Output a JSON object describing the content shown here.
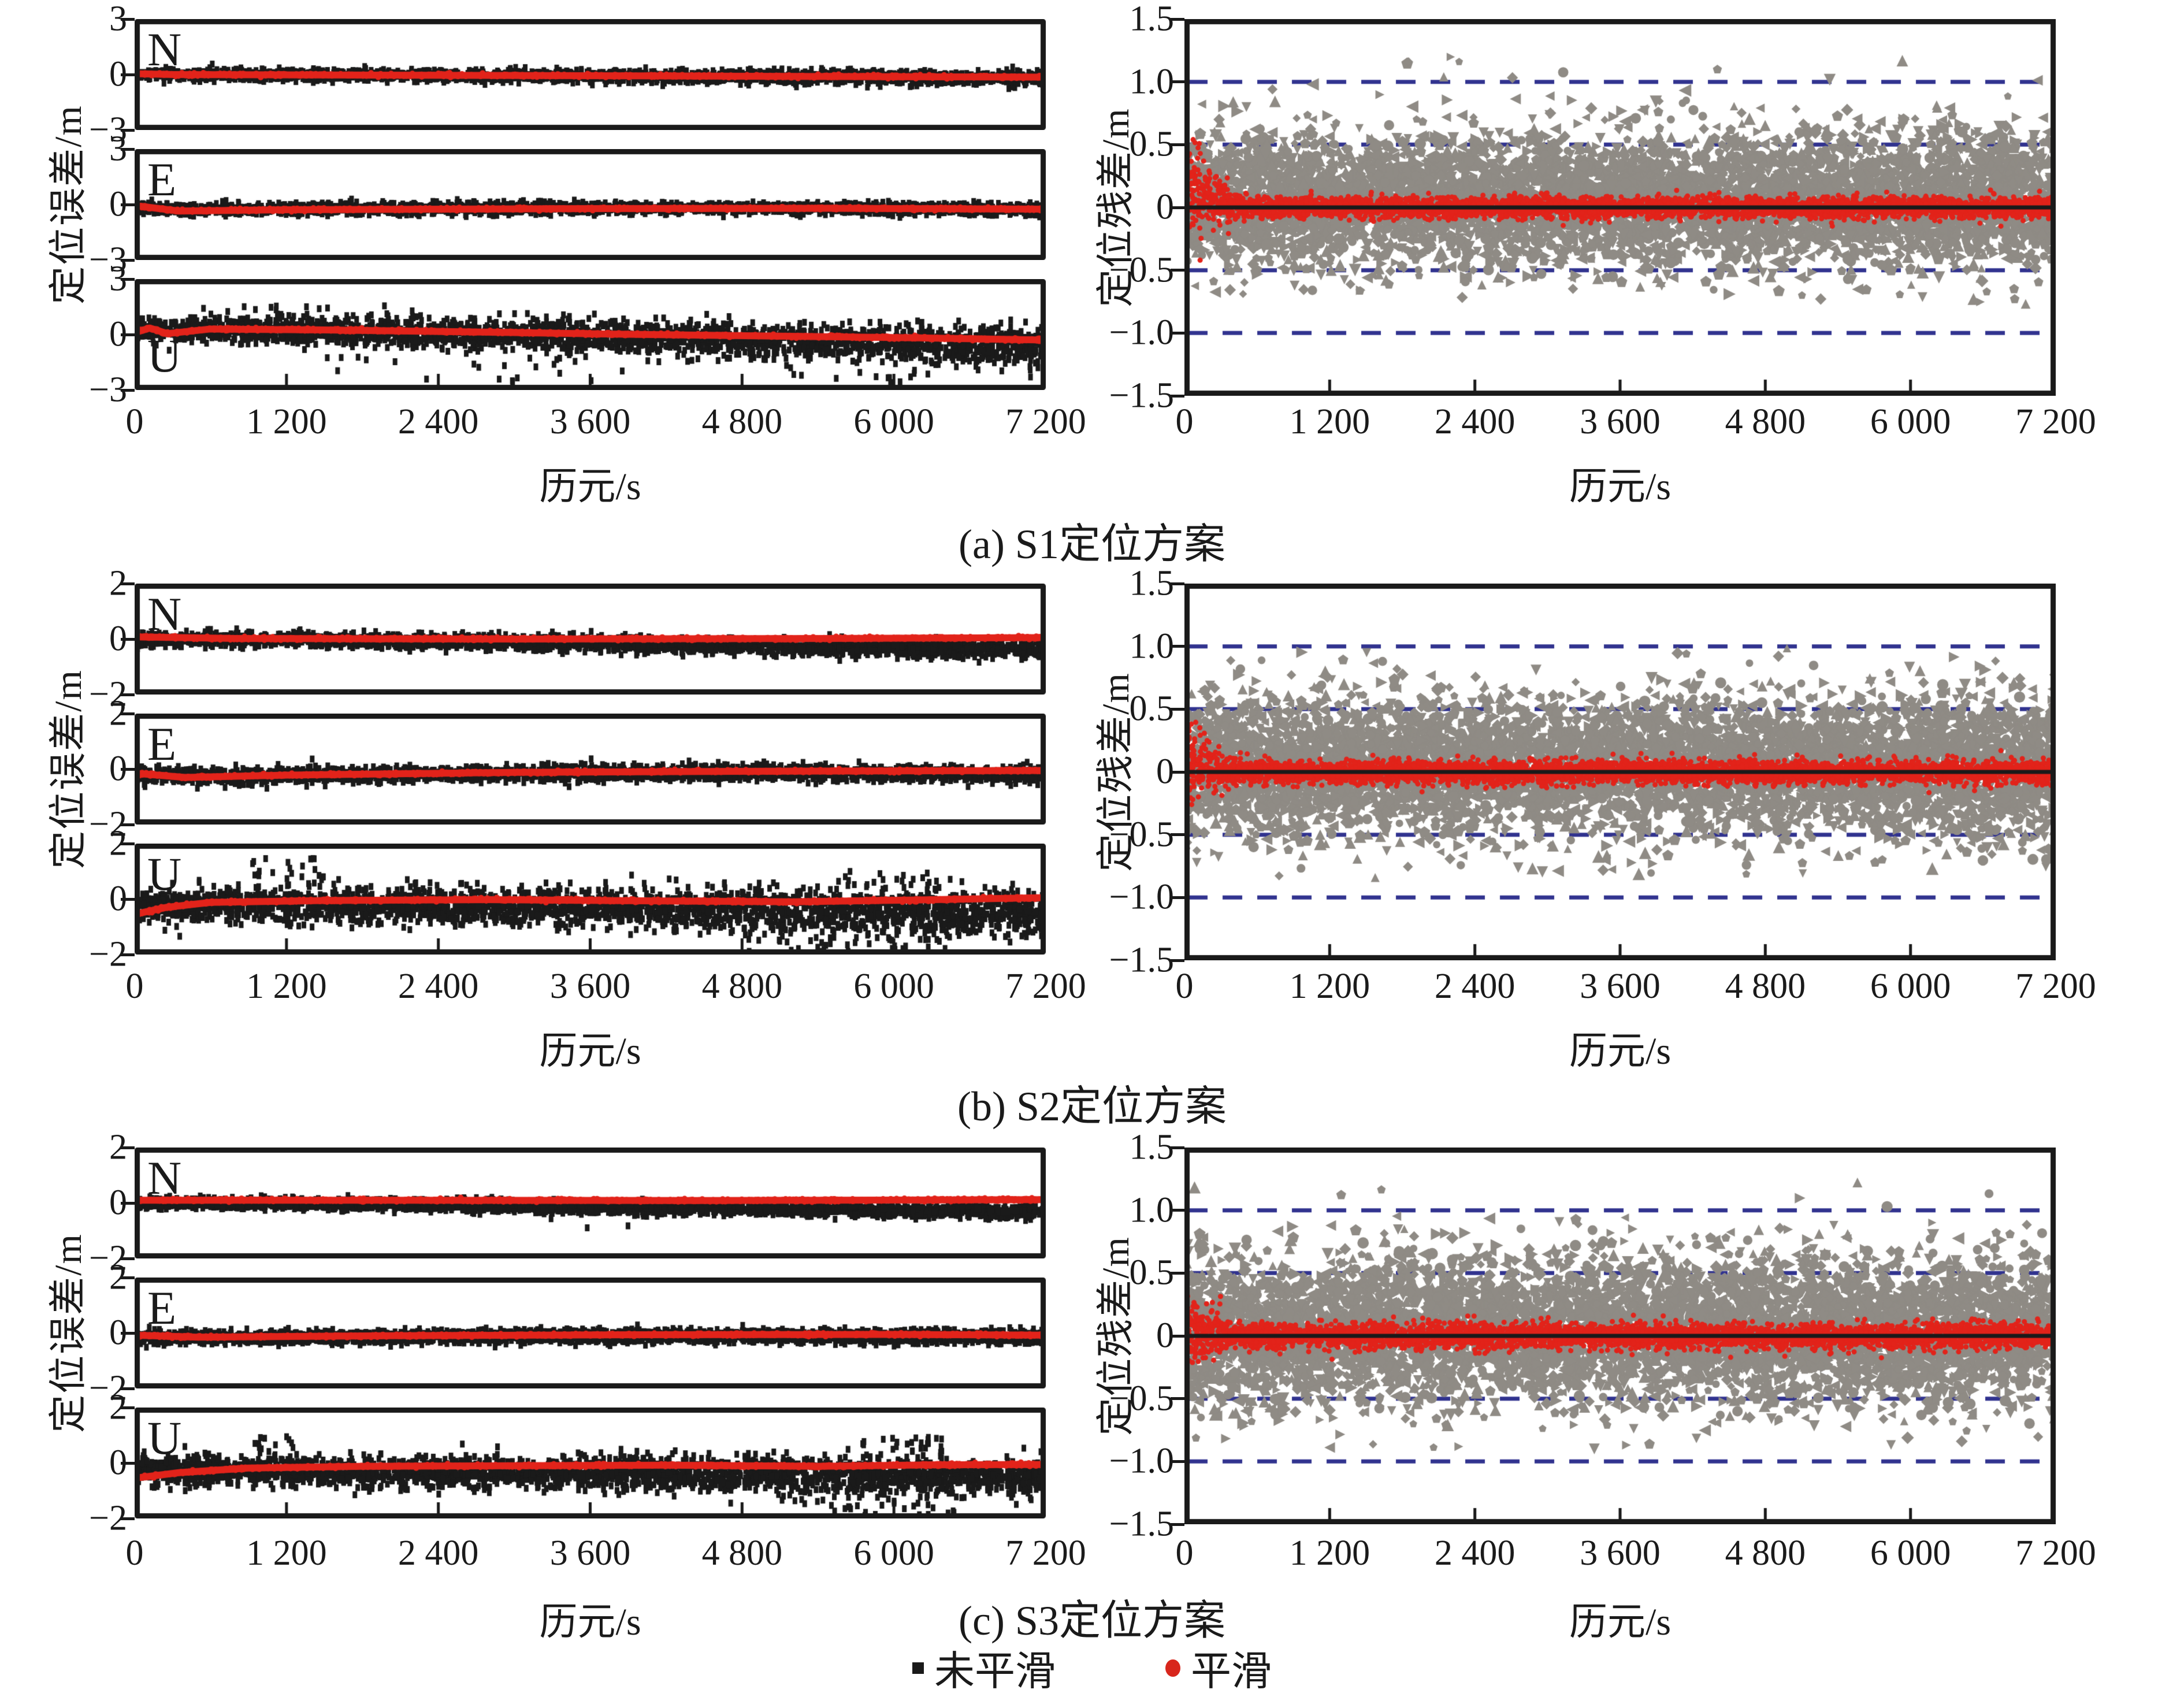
{
  "figure": {
    "xlabel": "历元/s",
    "left_ylabel": "定位误差/m",
    "right_ylabel": "定位残差/m",
    "x_ticks": [
      0,
      1200,
      2400,
      3600,
      4800,
      6000,
      7200
    ],
    "x_tick_labels": [
      "0",
      "1 200",
      "2 400",
      "3 600",
      "4 800",
      "6 000",
      "7 200"
    ],
    "xlim": [
      0,
      7200
    ],
    "legend": [
      {
        "label": "未平滑",
        "marker": "square",
        "color": "#1a1a1a"
      },
      {
        "label": "平滑",
        "marker": "dot",
        "color": "#d8261c"
      }
    ],
    "colors": {
      "black": "#1a1a1a",
      "red": "#e2231a",
      "gray": "#8f8b85",
      "dash_blue": "#31338f",
      "background": "#ffffff"
    }
  },
  "chart_data": [
    {
      "id": "a",
      "caption": "(a) S1定位方案",
      "scheme": "S1",
      "left": {
        "type": "scatter",
        "ylim": 3,
        "y_tick_labels": [
          "3",
          "0",
          "−3"
        ],
        "subplots": [
          {
            "label": "N",
            "label_pos": "top",
            "black": {
              "n": 2200,
              "sigma": [
                0.14,
                0.18
              ],
              "center": [
                [
                  0,
                  0
                ],
                [
                  1500,
                  -0.03
                ],
                [
                  3600,
                  -0.08
                ],
                [
                  5200,
                  -0.13
                ],
                [
                  7200,
                  -0.2
                ]
              ]
            },
            "red": [
              [
                0,
                0.05
              ],
              [
                300,
                0.0
              ],
              [
                1500,
                -0.02
              ],
              [
                3600,
                -0.06
              ],
              [
                5200,
                -0.1
              ],
              [
                7200,
                -0.14
              ]
            ]
          },
          {
            "label": "E",
            "label_pos": "top",
            "black": {
              "n": 2200,
              "sigma": [
                0.15,
                0.15
              ],
              "center": [
                [
                  0,
                  -0.1
                ],
                [
                  350,
                  -0.3
                ],
                [
                  1200,
                  -0.24
                ],
                [
                  3600,
                  -0.18
                ],
                [
                  5500,
                  -0.2
                ],
                [
                  7200,
                  -0.27
                ]
              ]
            },
            "red": [
              [
                0,
                -0.05
              ],
              [
                350,
                -0.35
              ],
              [
                1200,
                -0.28
              ],
              [
                3600,
                -0.22
              ],
              [
                5500,
                -0.2
              ],
              [
                7200,
                -0.25
              ]
            ]
          },
          {
            "label": "U",
            "label_pos": "bottom",
            "black": {
              "n": 2500,
              "sigma": [
                0.34,
                0.5
              ],
              "center": [
                [
                  0,
                  0.3
                ],
                [
                  1500,
                  0.22
                ],
                [
                  3600,
                  -0.08
                ],
                [
                  5400,
                  -0.4
                ],
                [
                  7200,
                  -0.6
                ]
              ],
              "extras": [
                {
                  "n": 60,
                  "x": [
                    1500,
                    7200
                  ],
                  "y": [
                    -2.6,
                    -1.0
                  ]
                },
                {
                  "n": 12,
                  "x": [
                    300,
                    2600
                  ],
                  "y": [
                    1.0,
                    1.6
                  ]
                }
              ]
            },
            "red": [
              [
                0,
                0.1
              ],
              [
                120,
                0.35
              ],
              [
                260,
                0.05
              ],
              [
                600,
                0.3
              ],
              [
                1500,
                0.25
              ],
              [
                2600,
                0.15
              ],
              [
                3800,
                0.02
              ],
              [
                5000,
                -0.08
              ],
              [
                6200,
                -0.18
              ],
              [
                7200,
                -0.3
              ]
            ]
          }
        ]
      },
      "right": {
        "type": "scatter",
        "ylim": 1.5,
        "y_tick_labels": [
          "1.5",
          "1.0",
          "0.5",
          "0",
          "−0.5",
          "−1.0",
          "−1.5"
        ],
        "dashed_lines": [
          1.0,
          0.5,
          -0.5,
          -1.0
        ],
        "zero_line": 0,
        "gray": {
          "n": 5600,
          "mean": 0.06,
          "sigma": 0.26,
          "clip": [
            -0.66,
            0.88
          ],
          "extras": [
            {
              "n": 46,
              "x": [
                0,
                7200
              ],
              "y": [
                0.6,
                1.2
              ]
            },
            {
              "n": 30,
              "x": [
                0,
                7200
              ],
              "y": [
                -0.78,
                -0.55
              ]
            }
          ]
        },
        "red": {
          "n": 4200,
          "sigma": 0.042,
          "early": {
            "x": 480,
            "sigma": 0.17,
            "lift": 0.2
          }
        }
      }
    },
    {
      "id": "b",
      "caption": "(b) S2定位方案",
      "scheme": "S2",
      "left": {
        "type": "scatter",
        "ylim": 2,
        "y_tick_labels": [
          "2",
          "0",
          "−2"
        ],
        "subplots": [
          {
            "label": "N",
            "label_pos": "top",
            "black": {
              "n": 2400,
              "sigma": [
                0.12,
                0.15
              ],
              "center": [
                [
                  0,
                  0
                ],
                [
                  2500,
                  -0.08
                ],
                [
                  5000,
                  -0.25
                ],
                [
                  7200,
                  -0.38
                ]
              ]
            },
            "red": [
              [
                0,
                0.08
              ],
              [
                800,
                0.02
              ],
              [
                3000,
                0
              ],
              [
                5500,
                0.02
              ],
              [
                7200,
                0.05
              ]
            ]
          },
          {
            "label": "E",
            "label_pos": "top",
            "black": {
              "n": 2400,
              "sigma": [
                0.14,
                0.14
              ],
              "center": [
                [
                  0,
                  -0.2
                ],
                [
                  700,
                  -0.28
                ],
                [
                  2500,
                  -0.18
                ],
                [
                  5000,
                  -0.12
                ],
                [
                  7200,
                  -0.2
                ]
              ]
            },
            "red": [
              [
                0,
                -0.15
              ],
              [
                400,
                -0.3
              ],
              [
                1200,
                -0.22
              ],
              [
                3000,
                -0.12
              ],
              [
                5000,
                -0.08
              ],
              [
                7200,
                -0.05
              ]
            ]
          },
          {
            "label": "U",
            "label_pos": "top",
            "black": {
              "n": 2600,
              "sigma": [
                0.28,
                0.42
              ],
              "center": [
                [
                  0,
                  -0.25
                ],
                [
                  1200,
                  -0.2
                ],
                [
                  3000,
                  -0.28
                ],
                [
                  5000,
                  -0.38
                ],
                [
                  7200,
                  -0.5
                ]
              ],
              "extras": [
                {
                  "n": 70,
                  "x": [
                    4800,
                    6600
                  ],
                  "y": [
                    -1.9,
                    -0.9
                  ]
                },
                {
                  "n": 22,
                  "x": [
                    900,
                    1500
                  ],
                  "y": [
                    0.7,
                    1.5
                  ]
                },
                {
                  "n": 14,
                  "x": [
                    5600,
                    6400
                  ],
                  "y": [
                    0.5,
                    1.0
                  ]
                }
              ]
            },
            "red": [
              [
                0,
                -0.55
              ],
              [
                250,
                -0.3
              ],
              [
                600,
                -0.12
              ],
              [
                1500,
                -0.05
              ],
              [
                2800,
                -0.02
              ],
              [
                4000,
                -0.06
              ],
              [
                5200,
                -0.1
              ],
              [
                6200,
                -0.03
              ],
              [
                7200,
                0.05
              ]
            ]
          }
        ]
      },
      "right": {
        "type": "scatter",
        "ylim": 1.5,
        "y_tick_labels": [
          "1.5",
          "1.0",
          "0.5",
          "0",
          "−0.5",
          "−1.0",
          "−1.5"
        ],
        "dashed_lines": [
          1.0,
          0.5,
          -0.5,
          -1.0
        ],
        "zero_line": 0,
        "gray": {
          "n": 5600,
          "mean": 0.05,
          "sigma": 0.27,
          "clip": [
            -0.7,
            0.9
          ],
          "extras": [
            {
              "n": 28,
              "x": [
                0,
                7200
              ],
              "y": [
                0.6,
                1.0
              ]
            },
            {
              "n": 44,
              "x": [
                0,
                7200
              ],
              "y": [
                -0.85,
                -0.55
              ]
            }
          ]
        },
        "red": {
          "n": 4200,
          "sigma": 0.045,
          "early": {
            "x": 380,
            "sigma": 0.15,
            "lift": 0.12
          }
        }
      }
    },
    {
      "id": "c",
      "caption": "(c) S3定位方案",
      "scheme": "S3",
      "left": {
        "type": "scatter",
        "ylim": 2,
        "y_tick_labels": [
          "2",
          "0",
          "−2"
        ],
        "subplots": [
          {
            "label": "N",
            "label_pos": "top",
            "black": {
              "n": 2800,
              "sigma": [
                0.09,
                0.12
              ],
              "center": [
                [
                  0,
                  0
                ],
                [
                  2000,
                  -0.05
                ],
                [
                  4500,
                  -0.2
                ],
                [
                  7200,
                  -0.33
                ]
              ],
              "extras": [
                {
                  "n": 3,
                  "x": [
                    3000,
                    4500
                  ],
                  "y": [
                    -0.95,
                    -0.55
                  ]
                }
              ]
            },
            "red": [
              [
                0,
                0.1
              ],
              [
                2000,
                0.1
              ],
              [
                4500,
                0.09
              ],
              [
                7200,
                0.12
              ]
            ]
          },
          {
            "label": "E",
            "label_pos": "top",
            "black": {
              "n": 2800,
              "sigma": [
                0.11,
                0.12
              ],
              "center": [
                [
                  0,
                  -0.15
                ],
                [
                  1000,
                  -0.18
                ],
                [
                  3000,
                  -0.12
                ],
                [
                  5000,
                  -0.1
                ],
                [
                  7200,
                  -0.16
                ]
              ]
            },
            "red": [
              [
                0,
                -0.08
              ],
              [
                500,
                -0.15
              ],
              [
                2000,
                -0.1
              ],
              [
                4000,
                -0.06
              ],
              [
                6000,
                -0.05
              ],
              [
                7200,
                -0.08
              ]
            ]
          },
          {
            "label": "U",
            "label_pos": "top",
            "black": {
              "n": 2800,
              "sigma": [
                0.24,
                0.33
              ],
              "center": [
                [
                  0,
                  -0.25
                ],
                [
                  1500,
                  -0.3
                ],
                [
                  3500,
                  -0.35
                ],
                [
                  5500,
                  -0.42
                ],
                [
                  7200,
                  -0.48
                ]
              ],
              "extras": [
                {
                  "n": 50,
                  "x": [
                    5200,
                    6600
                  ],
                  "y": [
                    -1.9,
                    -0.85
                  ]
                },
                {
                  "n": 26,
                  "x": [
                    5600,
                    6400
                  ],
                  "y": [
                    0.3,
                    0.95
                  ]
                },
                {
                  "n": 10,
                  "x": [
                    900,
                    1300
                  ],
                  "y": [
                    0.5,
                    1.0
                  ]
                }
              ]
            },
            "red": [
              [
                0,
                -0.55
              ],
              [
                350,
                -0.35
              ],
              [
                900,
                -0.18
              ],
              [
                1800,
                -0.12
              ],
              [
                3000,
                -0.1
              ],
              [
                4200,
                -0.08
              ],
              [
                5400,
                -0.12
              ],
              [
                6300,
                -0.07
              ],
              [
                7200,
                -0.05
              ]
            ]
          }
        ]
      },
      "right": {
        "type": "scatter",
        "ylim": 1.5,
        "y_tick_labels": [
          "1.5",
          "1.0",
          "0.5",
          "0",
          "−0.5",
          "−1.0",
          "−1.5"
        ],
        "dashed_lines": [
          1.0,
          0.5,
          -0.5,
          -1.0
        ],
        "zero_line": 0,
        "gray": {
          "n": 5800,
          "mean": 0.05,
          "sigma": 0.28,
          "clip": [
            -0.72,
            0.92
          ],
          "extras": [
            {
              "n": 30,
              "x": [
                0,
                7200
              ],
              "y": [
                0.6,
                1.25
              ]
            },
            {
              "n": 46,
              "x": [
                0,
                7200
              ],
              "y": [
                -0.9,
                -0.55
              ]
            }
          ]
        },
        "red": {
          "n": 4200,
          "sigma": 0.05,
          "early": {
            "x": 420,
            "sigma": 0.15,
            "lift": 0.06
          }
        }
      }
    }
  ]
}
